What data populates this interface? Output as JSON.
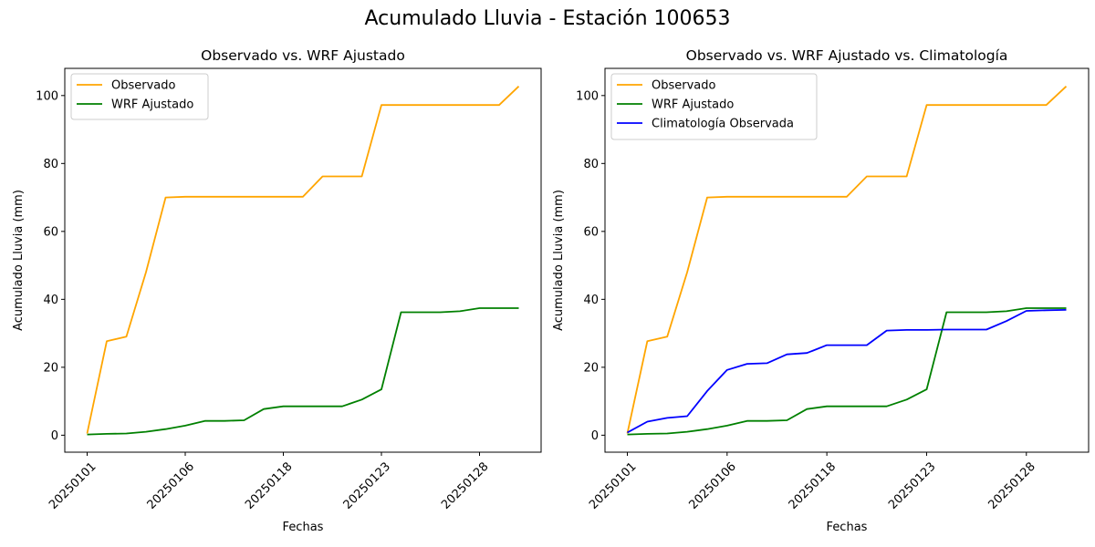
{
  "figure": {
    "suptitle": "Acumulado Lluvia - Estación 100653"
  },
  "colors": {
    "Observado": "#ffa500",
    "WRF Ajustado": "#008000",
    "Climatología Observada": "#0000ff"
  },
  "chart_data": [
    {
      "type": "line",
      "title": "Observado vs. WRF Ajustado",
      "xlabel": "Fechas",
      "ylabel": "Acumulado Lluvia (mm)",
      "x_tick_labels": [
        "20250101",
        "20250106",
        "20250118",
        "20250123",
        "20250128"
      ],
      "x_tick_indices": [
        0,
        5,
        10,
        15,
        20
      ],
      "ylim": [
        -5,
        108
      ],
      "y_ticks": [
        0,
        20,
        40,
        60,
        80,
        100
      ],
      "legend_position": "upper-left",
      "series": [
        {
          "name": "Observado",
          "values": [
            0.5,
            27.7,
            29.0,
            48.0,
            70.0,
            70.2,
            70.2,
            70.2,
            70.2,
            70.2,
            70.2,
            70.2,
            76.2,
            76.2,
            76.2,
            97.2,
            97.2,
            97.2,
            97.2,
            97.2,
            97.2,
            97.2,
            102.7
          ]
        },
        {
          "name": "WRF Ajustado",
          "values": [
            0.2,
            0.4,
            0.5,
            1.0,
            1.8,
            2.8,
            4.2,
            4.2,
            4.4,
            7.7,
            8.5,
            8.5,
            8.5,
            8.5,
            10.5,
            13.5,
            36.2,
            36.2,
            36.2,
            36.5,
            37.4,
            37.4,
            37.4
          ]
        }
      ]
    },
    {
      "type": "line",
      "title": "Observado vs. WRF Ajustado vs. Climatología",
      "xlabel": "Fechas",
      "ylabel": "Acumulado Lluvia (mm)",
      "x_tick_labels": [
        "20250101",
        "20250106",
        "20250118",
        "20250123",
        "20250128"
      ],
      "x_tick_indices": [
        0,
        5,
        10,
        15,
        20
      ],
      "ylim": [
        -5,
        108
      ],
      "y_ticks": [
        0,
        20,
        40,
        60,
        80,
        100
      ],
      "legend_position": "upper-left",
      "series": [
        {
          "name": "Observado",
          "values": [
            0.5,
            27.7,
            29.0,
            48.0,
            70.0,
            70.2,
            70.2,
            70.2,
            70.2,
            70.2,
            70.2,
            70.2,
            76.2,
            76.2,
            76.2,
            97.2,
            97.2,
            97.2,
            97.2,
            97.2,
            97.2,
            97.2,
            102.7
          ]
        },
        {
          "name": "WRF Ajustado",
          "values": [
            0.2,
            0.4,
            0.5,
            1.0,
            1.8,
            2.8,
            4.2,
            4.2,
            4.4,
            7.7,
            8.5,
            8.5,
            8.5,
            8.5,
            10.5,
            13.5,
            36.2,
            36.2,
            36.2,
            36.5,
            37.4,
            37.4,
            37.4
          ]
        },
        {
          "name": "Climatología Observada",
          "values": [
            0.8,
            4.0,
            5.1,
            5.6,
            13.0,
            19.2,
            21.0,
            21.2,
            23.8,
            24.2,
            26.5,
            26.5,
            26.5,
            30.8,
            31.0,
            31.0,
            31.1,
            31.1,
            31.1,
            33.6,
            36.6,
            36.8,
            36.9
          ]
        }
      ]
    }
  ]
}
